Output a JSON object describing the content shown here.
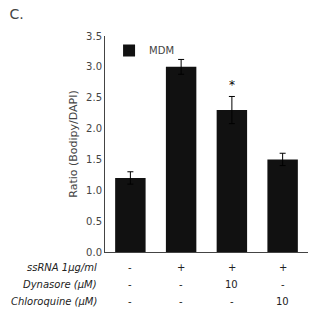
{
  "chart_data": {
    "type": "bar",
    "title": "C.",
    "ylabel": "Ratio (Bodipy/DAPI)",
    "categories": [
      null,
      null,
      null,
      null
    ],
    "series": [
      {
        "name": "MDM",
        "color": "#111111",
        "values": [
          1.2,
          3.0,
          2.3,
          1.5
        ],
        "errors": [
          0.1,
          0.12,
          0.22,
          0.1
        ],
        "significance": [
          null,
          null,
          "*",
          null
        ]
      }
    ],
    "rows": [
      {
        "label": "ssRNA 1μg/ml",
        "values": [
          "-",
          "+",
          "+",
          "+"
        ]
      },
      {
        "label": "Dynasore (μM)",
        "values": [
          "-",
          "-",
          "10",
          "-"
        ]
      },
      {
        "label": "Chloroquine (μM)",
        "values": [
          "-",
          "-",
          "-",
          "10"
        ]
      }
    ],
    "ylim": [
      0,
      3.5
    ],
    "yticks": [
      {
        "value": 0,
        "label": "0.0"
      },
      0.5,
      {
        "value": 1,
        "label": "1.0"
      },
      1.5,
      {
        "value": 2,
        "label": "2.0"
      },
      2.5,
      {
        "value": 3,
        "label": "3.0"
      },
      3.5
    ],
    "legend": "upper left",
    "grid": false,
    "tick_labels": "y"
  }
}
